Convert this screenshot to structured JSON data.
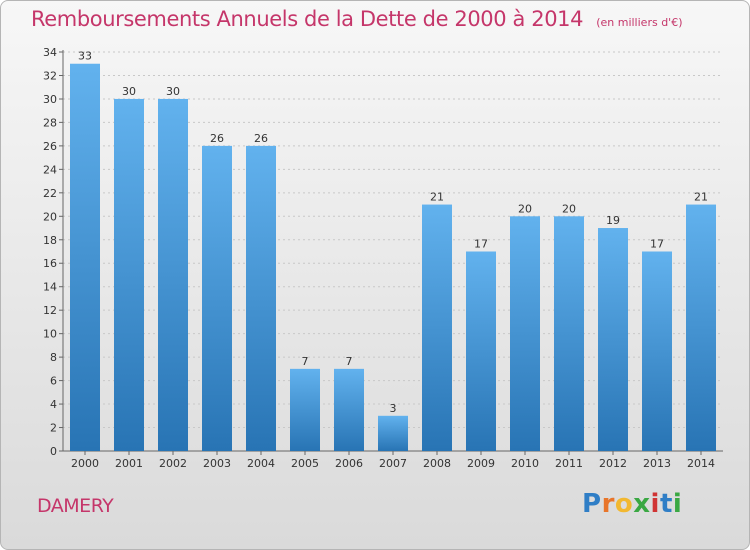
{
  "chart_data": {
    "type": "bar",
    "title": "Remboursements Annuels de la Dette de 2000 à 2014",
    "subtitle": "(en milliers d'€)",
    "categories": [
      "2000",
      "2001",
      "2002",
      "2003",
      "2004",
      "2005",
      "2006",
      "2007",
      "2008",
      "2009",
      "2010",
      "2011",
      "2012",
      "2013",
      "2014"
    ],
    "values": [
      33,
      30,
      30,
      26,
      26,
      7,
      7,
      3,
      21,
      17,
      20,
      20,
      19,
      17,
      21
    ],
    "ylim": [
      0,
      34
    ],
    "yticks": [
      0,
      2,
      4,
      6,
      8,
      10,
      12,
      14,
      16,
      18,
      20,
      22,
      24,
      26,
      28,
      30,
      32,
      34
    ],
    "grid": true,
    "bar_color_top": "#62b2ee",
    "bar_color_bottom": "#2874b4"
  },
  "commune": "DAMERY",
  "brand": {
    "letters": [
      "P",
      "r",
      "o",
      "x",
      "i",
      "t",
      "i"
    ],
    "colors": [
      "#2f7ec6",
      "#e8752a",
      "#f2b830",
      "#3aa843",
      "#d03434",
      "#2f7ec6",
      "#3aa843"
    ]
  },
  "colors": {
    "title": "#c5366a",
    "grid": "#c8c8c8"
  }
}
